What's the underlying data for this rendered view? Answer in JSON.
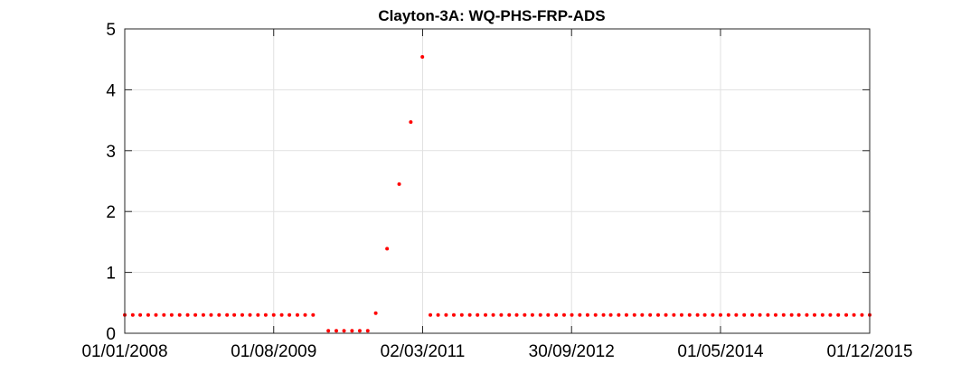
{
  "chart_data": {
    "type": "scatter",
    "title": "Clayton-3A: WQ-PHS-FRP-ADS",
    "xlabel": "",
    "ylabel": "",
    "xlim": [
      "2008-01-01",
      "2015-12-01"
    ],
    "ylim": [
      0,
      5
    ],
    "x_tick_labels": [
      "01/01/2008",
      "01/08/2009",
      "02/03/2011",
      "30/09/2012",
      "01/05/2014",
      "01/12/2015"
    ],
    "x_tick_dates": [
      "2008-01-01",
      "2009-08-01",
      "2011-03-02",
      "2012-09-30",
      "2014-05-01",
      "2015-12-01"
    ],
    "y_ticks": [
      0,
      1,
      2,
      3,
      4,
      5
    ],
    "grid": true,
    "marker_color": "#ff0000",
    "series": [
      {
        "points": [
          {
            "x": "2008-01-01",
            "y": 0.3
          },
          {
            "x": "2008-02-01",
            "y": 0.3
          },
          {
            "x": "2008-03-01",
            "y": 0.3
          },
          {
            "x": "2008-04-01",
            "y": 0.3
          },
          {
            "x": "2008-05-01",
            "y": 0.3
          },
          {
            "x": "2008-06-01",
            "y": 0.3
          },
          {
            "x": "2008-07-01",
            "y": 0.3
          },
          {
            "x": "2008-08-01",
            "y": 0.3
          },
          {
            "x": "2008-09-01",
            "y": 0.3
          },
          {
            "x": "2008-10-01",
            "y": 0.3
          },
          {
            "x": "2008-11-01",
            "y": 0.3
          },
          {
            "x": "2008-12-01",
            "y": 0.3
          },
          {
            "x": "2009-01-01",
            "y": 0.3
          },
          {
            "x": "2009-02-01",
            "y": 0.3
          },
          {
            "x": "2009-03-01",
            "y": 0.3
          },
          {
            "x": "2009-04-01",
            "y": 0.3
          },
          {
            "x": "2009-05-01",
            "y": 0.3
          },
          {
            "x": "2009-06-01",
            "y": 0.3
          },
          {
            "x": "2009-07-01",
            "y": 0.3
          },
          {
            "x": "2009-08-01",
            "y": 0.3
          },
          {
            "x": "2009-09-01",
            "y": 0.3
          },
          {
            "x": "2009-10-01",
            "y": 0.3
          },
          {
            "x": "2009-11-01",
            "y": 0.3
          },
          {
            "x": "2009-12-01",
            "y": 0.3
          },
          {
            "x": "2010-01-01",
            "y": 0.3
          },
          {
            "x": "2010-03-01",
            "y": 0.04
          },
          {
            "x": "2010-04-01",
            "y": 0.04
          },
          {
            "x": "2010-05-01",
            "y": 0.04
          },
          {
            "x": "2010-06-01",
            "y": 0.04
          },
          {
            "x": "2010-07-01",
            "y": 0.04
          },
          {
            "x": "2010-08-01",
            "y": 0.04
          },
          {
            "x": "2010-09-01",
            "y": 0.33
          },
          {
            "x": "2010-10-15",
            "y": 1.39
          },
          {
            "x": "2010-12-01",
            "y": 2.45
          },
          {
            "x": "2011-01-15",
            "y": 3.47
          },
          {
            "x": "2011-03-01",
            "y": 4.54
          },
          {
            "x": "2011-04-01",
            "y": 0.3
          },
          {
            "x": "2011-05-01",
            "y": 0.3
          },
          {
            "x": "2011-06-01",
            "y": 0.3
          },
          {
            "x": "2011-07-01",
            "y": 0.3
          },
          {
            "x": "2011-08-01",
            "y": 0.3
          },
          {
            "x": "2011-09-01",
            "y": 0.3
          },
          {
            "x": "2011-10-01",
            "y": 0.3
          },
          {
            "x": "2011-11-01",
            "y": 0.3
          },
          {
            "x": "2011-12-01",
            "y": 0.3
          },
          {
            "x": "2012-01-01",
            "y": 0.3
          },
          {
            "x": "2012-02-01",
            "y": 0.3
          },
          {
            "x": "2012-03-01",
            "y": 0.3
          },
          {
            "x": "2012-04-01",
            "y": 0.3
          },
          {
            "x": "2012-05-01",
            "y": 0.3
          },
          {
            "x": "2012-06-01",
            "y": 0.3
          },
          {
            "x": "2012-07-01",
            "y": 0.3
          },
          {
            "x": "2012-08-01",
            "y": 0.3
          },
          {
            "x": "2012-09-01",
            "y": 0.3
          },
          {
            "x": "2012-10-01",
            "y": 0.3
          },
          {
            "x": "2012-11-01",
            "y": 0.3
          },
          {
            "x": "2012-12-01",
            "y": 0.3
          },
          {
            "x": "2013-01-01",
            "y": 0.3
          },
          {
            "x": "2013-02-01",
            "y": 0.3
          },
          {
            "x": "2013-03-01",
            "y": 0.3
          },
          {
            "x": "2013-04-01",
            "y": 0.3
          },
          {
            "x": "2013-05-01",
            "y": 0.3
          },
          {
            "x": "2013-06-01",
            "y": 0.3
          },
          {
            "x": "2013-07-01",
            "y": 0.3
          },
          {
            "x": "2013-08-01",
            "y": 0.3
          },
          {
            "x": "2013-09-01",
            "y": 0.3
          },
          {
            "x": "2013-10-01",
            "y": 0.3
          },
          {
            "x": "2013-11-01",
            "y": 0.3
          },
          {
            "x": "2013-12-01",
            "y": 0.3
          },
          {
            "x": "2014-01-01",
            "y": 0.3
          },
          {
            "x": "2014-02-01",
            "y": 0.3
          },
          {
            "x": "2014-03-01",
            "y": 0.3
          },
          {
            "x": "2014-04-01",
            "y": 0.3
          },
          {
            "x": "2014-05-01",
            "y": 0.3
          },
          {
            "x": "2014-06-01",
            "y": 0.3
          },
          {
            "x": "2014-07-01",
            "y": 0.3
          },
          {
            "x": "2014-08-01",
            "y": 0.3
          },
          {
            "x": "2014-09-01",
            "y": 0.3
          },
          {
            "x": "2014-10-01",
            "y": 0.3
          },
          {
            "x": "2014-11-01",
            "y": 0.3
          },
          {
            "x": "2014-12-01",
            "y": 0.3
          },
          {
            "x": "2015-01-01",
            "y": 0.3
          },
          {
            "x": "2015-02-01",
            "y": 0.3
          },
          {
            "x": "2015-03-01",
            "y": 0.3
          },
          {
            "x": "2015-04-01",
            "y": 0.3
          },
          {
            "x": "2015-05-01",
            "y": 0.3
          },
          {
            "x": "2015-06-01",
            "y": 0.3
          },
          {
            "x": "2015-07-01",
            "y": 0.3
          },
          {
            "x": "2015-08-01",
            "y": 0.3
          },
          {
            "x": "2015-09-01",
            "y": 0.3
          },
          {
            "x": "2015-10-01",
            "y": 0.3
          },
          {
            "x": "2015-11-01",
            "y": 0.3
          },
          {
            "x": "2015-12-01",
            "y": 0.3
          }
        ]
      }
    ]
  }
}
